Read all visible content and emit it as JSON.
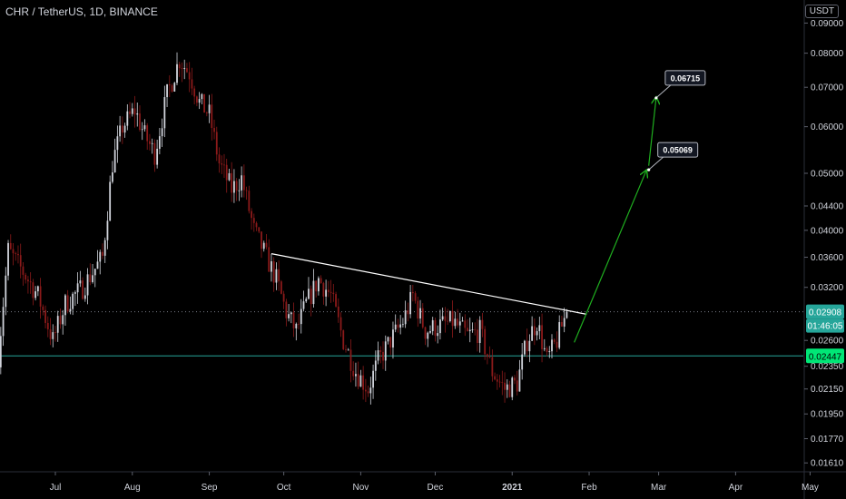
{
  "header": {
    "title": "CHR / TetherUS, 1D, BINANCE",
    "unit": "USDT"
  },
  "colors": {
    "background": "#000000",
    "up": "#d1d4dc",
    "down": "#8b1a1a",
    "trendline": "#ffffff",
    "support": "#26a69a",
    "arrow": "#1fae1f",
    "last_price_badge": "#26a69a",
    "support_badge": "#00e676"
  },
  "chart_data": {
    "type": "candlestick",
    "y_scale": "log",
    "ylim": [
      0.01555,
      0.0985
    ],
    "y_ticks": [
      "0.09000",
      "0.08000",
      "0.07000",
      "0.06000",
      "0.05000",
      "0.04400",
      "0.04000",
      "0.03600",
      "0.03200",
      "0.02600",
      "0.02350",
      "0.02150",
      "0.01950",
      "0.01770",
      "0.01610"
    ],
    "x_ticks": [
      "Jul",
      "Aug",
      "Sep",
      "Oct",
      "Nov",
      "Dec",
      "2021",
      "Feb",
      "Mar",
      "Apr",
      "May"
    ],
    "x_tick_values": [
      "2020-07-01",
      "2020-08-01",
      "2020-09-01",
      "2020-10-01",
      "2020-11-01",
      "2020-12-01",
      "2021-01-01",
      "2021-02-01",
      "2021-03-01",
      "2021-04-01",
      "2021-05-01"
    ],
    "price_points": [
      [
        "2020-06-08",
        0.0245
      ],
      [
        "2020-06-12",
        0.037
      ],
      [
        "2020-06-18",
        0.034
      ],
      [
        "2020-06-24",
        0.031
      ],
      [
        "2020-06-30",
        0.026
      ],
      [
        "2020-07-05",
        0.03
      ],
      [
        "2020-07-12",
        0.032
      ],
      [
        "2020-07-20",
        0.036
      ],
      [
        "2020-07-24",
        0.052
      ],
      [
        "2020-07-28",
        0.06
      ],
      [
        "2020-08-02",
        0.064
      ],
      [
        "2020-08-06",
        0.058
      ],
      [
        "2020-08-10",
        0.054
      ],
      [
        "2020-08-15",
        0.068
      ],
      [
        "2020-08-20",
        0.078
      ],
      [
        "2020-08-24",
        0.074
      ],
      [
        "2020-08-28",
        0.066
      ],
      [
        "2020-09-01",
        0.063
      ],
      [
        "2020-09-05",
        0.052
      ],
      [
        "2020-09-10",
        0.047
      ],
      [
        "2020-09-14",
        0.049
      ],
      [
        "2020-09-19",
        0.04
      ],
      [
        "2020-09-24",
        0.036
      ],
      [
        "2020-09-28",
        0.033
      ],
      [
        "2020-10-02",
        0.029
      ],
      [
        "2020-10-06",
        0.027
      ],
      [
        "2020-10-10",
        0.03
      ],
      [
        "2020-10-15",
        0.033
      ],
      [
        "2020-10-20",
        0.031
      ],
      [
        "2020-10-25",
        0.026
      ],
      [
        "2020-10-30",
        0.023
      ],
      [
        "2020-11-04",
        0.0215
      ],
      [
        "2020-11-08",
        0.024
      ],
      [
        "2020-11-13",
        0.026
      ],
      [
        "2020-11-18",
        0.028
      ],
      [
        "2020-11-22",
        0.031
      ],
      [
        "2020-11-27",
        0.027
      ],
      [
        "2020-12-02",
        0.0275
      ],
      [
        "2020-12-08",
        0.028
      ],
      [
        "2020-12-14",
        0.0265
      ],
      [
        "2020-12-19",
        0.027
      ],
      [
        "2020-12-24",
        0.023
      ],
      [
        "2020-12-29",
        0.0215
      ],
      [
        "2021-01-03",
        0.022
      ],
      [
        "2021-01-07",
        0.026
      ],
      [
        "2021-01-11",
        0.028
      ],
      [
        "2021-01-15",
        0.024
      ],
      [
        "2021-01-19",
        0.026
      ],
      [
        "2021-01-23",
        0.02908
      ]
    ],
    "trendline": {
      "from": [
        "2020-09-26",
        0.0365
      ],
      "to": [
        "2021-01-31",
        0.0288
      ]
    },
    "support_level": 0.02447,
    "last_price": 0.02908,
    "countdown": "01:46:05",
    "projection": {
      "segments": [
        {
          "from": [
            "2021-01-26",
            0.0258
          ],
          "to": [
            "2021-02-24",
            0.0505
          ]
        },
        {
          "from": [
            "2021-02-25",
            0.0515
          ],
          "to": [
            "2021-02-28",
            0.0672
          ]
        }
      ],
      "targets": [
        {
          "label": "0.05069",
          "value": 0.05069
        },
        {
          "label": "0.06715",
          "value": 0.06715
        }
      ]
    },
    "badges": [
      {
        "label": "0.02908",
        "value": 0.02908,
        "sub": "01:46:05"
      },
      {
        "label": "0.02447",
        "value": 0.02447
      }
    ]
  }
}
